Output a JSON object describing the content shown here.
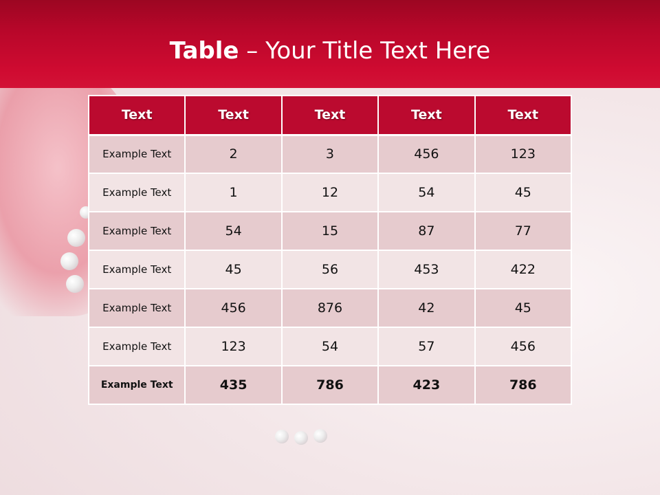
{
  "slide": {
    "title_bold": "Table",
    "title_rest": " – Your Title Text Here"
  },
  "table": {
    "headers": [
      "Text",
      "Text",
      "Text",
      "Text",
      "Text"
    ],
    "rows": [
      [
        "Example Text",
        "2",
        "3",
        "456",
        "123"
      ],
      [
        "Example Text",
        "1",
        "12",
        "54",
        "45"
      ],
      [
        "Example Text",
        "54",
        "15",
        "87",
        "77"
      ],
      [
        "Example Text",
        "45",
        "56",
        "453",
        "422"
      ],
      [
        "Example Text",
        "456",
        "876",
        "42",
        "45"
      ],
      [
        "Example Text",
        "123",
        "54",
        "57",
        "456"
      ],
      [
        "Example Text",
        "435",
        "786",
        "423",
        "786"
      ]
    ]
  },
  "colors": {
    "header_red": "#bb0a2f",
    "row_dark": "#e6cbce",
    "row_light": "#f2e4e5"
  }
}
